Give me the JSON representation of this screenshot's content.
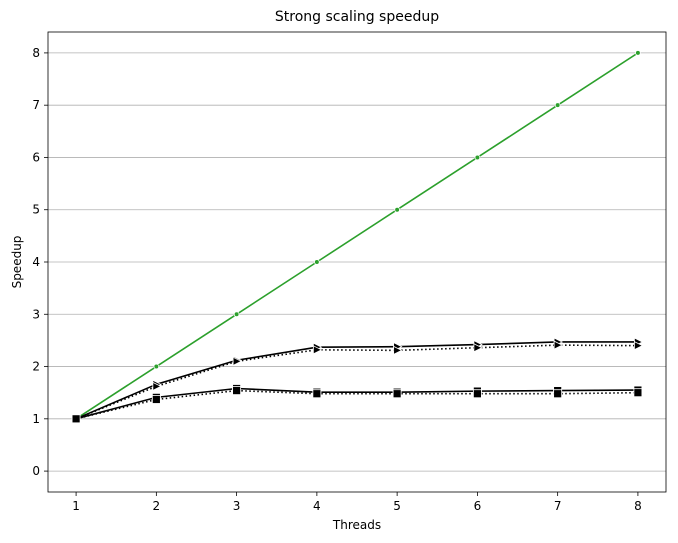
{
  "chart_data": {
    "type": "line",
    "title": "Strong scaling speedup",
    "xlabel": "Threads",
    "ylabel": "Speedup",
    "x": [
      1,
      2,
      3,
      4,
      5,
      6,
      7,
      8
    ],
    "xlim": [
      0.65,
      8.35
    ],
    "ylim": [
      -0.4,
      8.4
    ],
    "xticks": [
      1,
      2,
      3,
      4,
      5,
      6,
      7,
      8
    ],
    "yticks": [
      0,
      1,
      2,
      3,
      4,
      5,
      6,
      7,
      8
    ],
    "grid": "horizontal",
    "legend": "none",
    "series": [
      {
        "color": "#2ca02c",
        "line": "solid",
        "marker": "dot",
        "values": [
          1,
          2,
          3,
          4,
          5,
          6,
          7,
          8
        ]
      },
      {
        "color": "#000000",
        "line": "solid",
        "marker": "triangle-right",
        "values": [
          1,
          1.66,
          2.12,
          2.37,
          2.38,
          2.42,
          2.47,
          2.47
        ]
      },
      {
        "color": "#000000",
        "line": "dotted",
        "marker": "triangle-right",
        "values": [
          1,
          1.62,
          2.1,
          2.32,
          2.31,
          2.36,
          2.41,
          2.4
        ]
      },
      {
        "color": "#000000",
        "line": "solid",
        "marker": "square",
        "values": [
          1,
          1.41,
          1.58,
          1.51,
          1.51,
          1.53,
          1.54,
          1.55
        ]
      },
      {
        "color": "#000000",
        "line": "dotted",
        "marker": "square",
        "values": [
          1,
          1.37,
          1.54,
          1.48,
          1.48,
          1.48,
          1.48,
          1.5
        ]
      }
    ]
  }
}
